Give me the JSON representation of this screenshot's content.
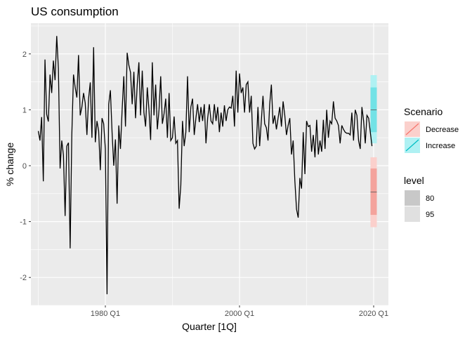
{
  "chart_data": {
    "type": "line",
    "title": "US consumption",
    "xlabel": "Quarter [1Q]",
    "ylabel": "% change",
    "x_ticks": [
      {
        "label": "1980 Q1",
        "value": 1980.0
      },
      {
        "label": "2000 Q1",
        "value": 2000.0
      },
      {
        "label": "2020 Q1",
        "value": 2020.0
      }
    ],
    "y_ticks": [
      {
        "label": "-2",
        "value": -2
      },
      {
        "label": "-1",
        "value": -1
      },
      {
        "label": "0",
        "value": 0
      },
      {
        "label": "1",
        "value": 1
      },
      {
        "label": "2",
        "value": 2
      }
    ],
    "xlim": [
      1968.9,
      2022.2
    ],
    "ylim": [
      -2.5,
      2.55
    ],
    "grid": true,
    "series": [
      {
        "color": "#000000",
        "points": [
          [
            1970.0,
            0.62
          ],
          [
            1970.25,
            0.45
          ],
          [
            1970.5,
            0.87
          ],
          [
            1970.75,
            -0.28
          ],
          [
            1971.0,
            1.9
          ],
          [
            1971.25,
            0.92
          ],
          [
            1971.5,
            0.79
          ],
          [
            1971.75,
            1.63
          ],
          [
            1972.0,
            1.3
          ],
          [
            1972.25,
            1.88
          ],
          [
            1972.5,
            1.53
          ],
          [
            1972.75,
            2.32
          ],
          [
            1973.0,
            1.74
          ],
          [
            1973.25,
            -0.05
          ],
          [
            1973.5,
            0.45
          ],
          [
            1973.75,
            0.19
          ],
          [
            1974.0,
            -0.9
          ],
          [
            1974.25,
            0.35
          ],
          [
            1974.5,
            0.41
          ],
          [
            1974.75,
            -1.48
          ],
          [
            1975.0,
            0.55
          ],
          [
            1975.25,
            1.63
          ],
          [
            1975.5,
            1.4
          ],
          [
            1975.75,
            1.22
          ],
          [
            1976.0,
            1.98
          ],
          [
            1976.25,
            0.9
          ],
          [
            1976.5,
            1.05
          ],
          [
            1976.75,
            1.3
          ],
          [
            1977.0,
            1.12
          ],
          [
            1977.25,
            0.55
          ],
          [
            1977.5,
            1.2
          ],
          [
            1977.75,
            1.49
          ],
          [
            1978.0,
            0.5
          ],
          [
            1978.25,
            2.12
          ],
          [
            1978.5,
            0.42
          ],
          [
            1978.75,
            0.8
          ],
          [
            1979.0,
            0.62
          ],
          [
            1979.25,
            -0.08
          ],
          [
            1979.5,
            0.85
          ],
          [
            1979.75,
            0.75
          ],
          [
            1980.0,
            0.3
          ],
          [
            1980.25,
            -2.3
          ],
          [
            1980.5,
            1.1
          ],
          [
            1980.75,
            1.35
          ],
          [
            1981.0,
            0.6
          ],
          [
            1981.25,
            0.0
          ],
          [
            1981.5,
            0.47
          ],
          [
            1981.75,
            -0.68
          ],
          [
            1982.0,
            0.72
          ],
          [
            1982.25,
            0.3
          ],
          [
            1982.5,
            1.0
          ],
          [
            1982.75,
            1.6
          ],
          [
            1983.0,
            0.7
          ],
          [
            1983.25,
            2.02
          ],
          [
            1983.5,
            1.8
          ],
          [
            1983.75,
            1.67
          ],
          [
            1984.0,
            1.1
          ],
          [
            1984.25,
            1.68
          ],
          [
            1984.5,
            0.85
          ],
          [
            1984.75,
            1.45
          ],
          [
            1985.0,
            1.85
          ],
          [
            1985.25,
            0.9
          ],
          [
            1985.5,
            1.7
          ],
          [
            1985.75,
            0.95
          ],
          [
            1986.0,
            0.7
          ],
          [
            1986.25,
            1.4
          ],
          [
            1986.5,
            1.0
          ],
          [
            1986.75,
            0.46
          ],
          [
            1987.0,
            1.85
          ],
          [
            1987.25,
            0.9
          ],
          [
            1987.5,
            1.45
          ],
          [
            1987.75,
            0.65
          ],
          [
            1988.0,
            1.0
          ],
          [
            1988.25,
            1.6
          ],
          [
            1988.5,
            0.75
          ],
          [
            1988.75,
            0.93
          ],
          [
            1989.0,
            1.2
          ],
          [
            1989.25,
            0.5
          ],
          [
            1989.5,
            1.3
          ],
          [
            1989.75,
            0.45
          ],
          [
            1990.0,
            0.5
          ],
          [
            1990.25,
            0.88
          ],
          [
            1990.5,
            0.4
          ],
          [
            1990.75,
            0.45
          ],
          [
            1991.0,
            -0.77
          ],
          [
            1991.25,
            -0.35
          ],
          [
            1991.5,
            0.8
          ],
          [
            1991.75,
            0.35
          ],
          [
            1992.0,
            0.6
          ],
          [
            1992.25,
            1.6
          ],
          [
            1992.5,
            0.6
          ],
          [
            1992.75,
            1.05
          ],
          [
            1993.0,
            1.2
          ],
          [
            1993.25,
            0.55
          ],
          [
            1993.5,
            0.85
          ],
          [
            1993.75,
            1.1
          ],
          [
            1994.0,
            0.78
          ],
          [
            1994.25,
            1.05
          ],
          [
            1994.5,
            0.8
          ],
          [
            1994.75,
            1.1
          ],
          [
            1995.0,
            0.4
          ],
          [
            1995.25,
            0.85
          ],
          [
            1995.5,
            1.1
          ],
          [
            1995.75,
            0.8
          ],
          [
            1996.0,
            0.75
          ],
          [
            1996.25,
            1.1
          ],
          [
            1996.5,
            0.8
          ],
          [
            1996.75,
            1.05
          ],
          [
            1997.0,
            0.6
          ],
          [
            1997.25,
            0.95
          ],
          [
            1997.5,
            0.7
          ],
          [
            1997.75,
            1.08
          ],
          [
            1998.0,
            0.8
          ],
          [
            1998.25,
            1.0
          ],
          [
            1998.5,
            1.05
          ],
          [
            1998.75,
            1.03
          ],
          [
            1999.0,
            1.25
          ],
          [
            1999.25,
            0.7
          ],
          [
            1999.5,
            1.7
          ],
          [
            1999.75,
            0.95
          ],
          [
            2000.0,
            1.65
          ],
          [
            2000.25,
            1.3
          ],
          [
            2000.5,
            1.4
          ],
          [
            2000.75,
            0.95
          ],
          [
            2001.0,
            1.45
          ],
          [
            2001.25,
            1.5
          ],
          [
            2001.5,
            0.95
          ],
          [
            2001.75,
            1.25
          ],
          [
            2002.0,
            0.4
          ],
          [
            2002.25,
            0.3
          ],
          [
            2002.5,
            0.35
          ],
          [
            2002.75,
            1.05
          ],
          [
            2003.0,
            0.35
          ],
          [
            2003.25,
            0.8
          ],
          [
            2003.5,
            1.25
          ],
          [
            2003.75,
            0.75
          ],
          [
            2004.0,
            0.68
          ],
          [
            2004.25,
            0.45
          ],
          [
            2004.5,
            1.1
          ],
          [
            2004.75,
            1.45
          ],
          [
            2005.0,
            0.75
          ],
          [
            2005.25,
            0.9
          ],
          [
            2005.5,
            0.65
          ],
          [
            2005.75,
            0.85
          ],
          [
            2006.0,
            1.05
          ],
          [
            2006.25,
            0.7
          ],
          [
            2006.5,
            1.15
          ],
          [
            2006.75,
            0.9
          ],
          [
            2007.0,
            0.55
          ],
          [
            2007.25,
            0.72
          ],
          [
            2007.5,
            0.85
          ],
          [
            2007.75,
            0.2
          ],
          [
            2008.0,
            0.45
          ],
          [
            2008.25,
            -0.27
          ],
          [
            2008.5,
            -0.78
          ],
          [
            2008.75,
            -0.93
          ],
          [
            2009.0,
            -0.22
          ],
          [
            2009.25,
            -0.41
          ],
          [
            2009.5,
            0.6
          ],
          [
            2009.75,
            -0.15
          ],
          [
            2010.0,
            0.8
          ],
          [
            2010.25,
            0.7
          ],
          [
            2010.5,
            0.72
          ],
          [
            2010.75,
            0.25
          ],
          [
            2011.0,
            0.55
          ],
          [
            2011.25,
            0.15
          ],
          [
            2011.5,
            0.82
          ],
          [
            2011.75,
            0.2
          ],
          [
            2012.0,
            0.45
          ],
          [
            2012.25,
            0.25
          ],
          [
            2012.5,
            0.82
          ],
          [
            2012.75,
            0.3
          ],
          [
            2013.0,
            1.0
          ],
          [
            2013.25,
            0.5
          ],
          [
            2013.5,
            0.8
          ],
          [
            2013.75,
            0.75
          ],
          [
            2014.0,
            1.15
          ],
          [
            2014.25,
            0.85
          ],
          [
            2014.5,
            0.8
          ],
          [
            2014.75,
            0.72
          ],
          [
            2015.0,
            0.4
          ],
          [
            2015.25,
            0.72
          ],
          [
            2015.5,
            0.65
          ],
          [
            2015.75,
            0.6
          ],
          [
            2016.0,
            0.58
          ],
          [
            2016.25,
            0.58
          ],
          [
            2016.5,
            0.55
          ],
          [
            2016.75,
            0.95
          ],
          [
            2017.0,
            0.45
          ],
          [
            2017.25,
            1.0
          ],
          [
            2017.5,
            0.9
          ],
          [
            2017.75,
            0.45
          ],
          [
            2018.0,
            0.3
          ],
          [
            2018.25,
            1.05
          ],
          [
            2018.5,
            0.8
          ],
          [
            2018.75,
            0.4
          ],
          [
            2019.0,
            0.9
          ],
          [
            2019.25,
            0.85
          ],
          [
            2019.5,
            0.6
          ],
          [
            2019.75,
            0.35
          ]
        ]
      }
    ],
    "forecast": {
      "x": 2020.0,
      "increase": {
        "mean": 1.0,
        "level80": [
          0.6,
          1.4
        ],
        "level95": [
          0.4,
          1.62
        ]
      },
      "decrease": {
        "mean": -0.47,
        "level80": [
          -0.88,
          -0.05
        ],
        "level95": [
          -1.1,
          0.15
        ]
      }
    },
    "legends": {
      "scenario": {
        "title": "Scenario",
        "items": [
          {
            "label": "Decrease",
            "color": "#F8766D"
          },
          {
            "label": "Increase",
            "color": "#00BFC4"
          }
        ]
      },
      "level": {
        "title": "level",
        "items": [
          {
            "label": "80",
            "fill": "#c8c8c8"
          },
          {
            "label": "95",
            "fill": "#e0e0e0"
          }
        ]
      }
    },
    "legend_position": "right",
    "colors": {
      "panel": "#EBEBEB",
      "grid": "#ffffff",
      "line": "#000000",
      "increase_95": "#AFF1F3",
      "increase_80": "#72E2E6",
      "decrease_95": "#FBD0CC",
      "decrease_80": "#F4A39C"
    }
  }
}
